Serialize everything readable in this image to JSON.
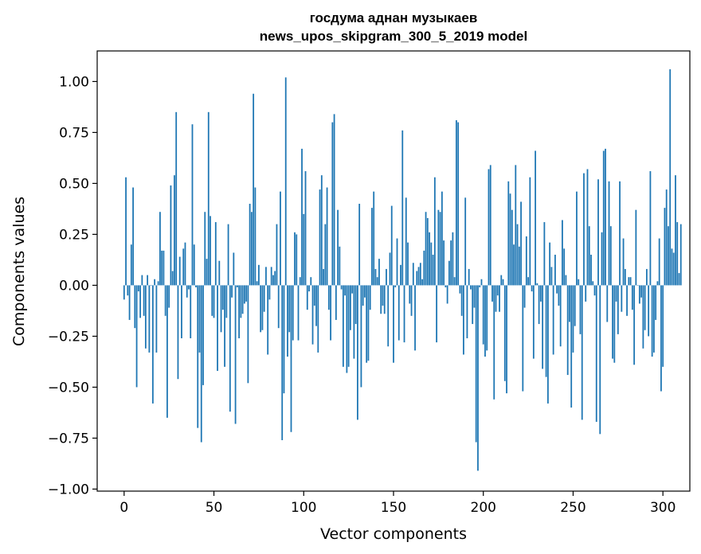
{
  "chart_data": {
    "type": "bar",
    "title_lines": [
      "госдума аднан музыкаев",
      "news_upos_skipgram_300_5_2019 model"
    ],
    "xlabel": "Vector components",
    "ylabel": "Components values",
    "xlim": [
      -15,
      315
    ],
    "ylim": [
      -1.01,
      1.15
    ],
    "x_ticks": [
      0,
      50,
      100,
      150,
      200,
      250,
      300
    ],
    "y_ticks": [
      1.0,
      0.75,
      0.5,
      0.25,
      0.0,
      -0.25,
      -0.5,
      -0.75,
      -1.0
    ],
    "x_tick_labels": [
      "0",
      "50",
      "100",
      "150",
      "200",
      "250",
      "300"
    ],
    "y_tick_labels": [
      "1.00",
      "0.75",
      "0.50",
      "0.25",
      "0.00",
      "−0.25",
      "−0.50",
      "−0.75",
      "−1.00"
    ],
    "bar_color": "#1f77b4",
    "grid": false,
    "values": [
      -0.07,
      0.53,
      -0.05,
      -0.17,
      0.2,
      0.48,
      -0.21,
      -0.5,
      -0.03,
      -0.16,
      0.05,
      -0.15,
      -0.31,
      0.05,
      -0.33,
      0.0,
      -0.58,
      0.03,
      -0.33,
      0.02,
      0.36,
      0.17,
      0.17,
      -0.15,
      -0.65,
      -0.11,
      0.49,
      0.07,
      0.54,
      0.85,
      -0.46,
      0.14,
      -0.26,
      0.18,
      0.21,
      -0.06,
      -0.02,
      -0.26,
      0.79,
      0.2,
      -0.01,
      -0.7,
      -0.33,
      -0.77,
      -0.49,
      0.36,
      0.13,
      0.85,
      0.34,
      -0.15,
      -0.16,
      0.31,
      -0.42,
      0.12,
      -0.23,
      -0.12,
      -0.4,
      -0.16,
      0.3,
      -0.62,
      -0.06,
      0.16,
      -0.68,
      -0.01,
      -0.26,
      -0.16,
      -0.14,
      -0.09,
      -0.08,
      -0.48,
      0.4,
      0.36,
      0.94,
      0.48,
      0.02,
      0.1,
      -0.23,
      -0.22,
      -0.13,
      0.09,
      -0.34,
      -0.07,
      0.09,
      0.05,
      0.07,
      0.3,
      -0.21,
      0.46,
      -0.76,
      -0.53,
      1.02,
      -0.35,
      -0.23,
      -0.72,
      -0.27,
      0.26,
      0.25,
      -0.27,
      0.04,
      0.67,
      0.35,
      0.56,
      -0.12,
      -0.03,
      0.04,
      -0.29,
      -0.1,
      -0.2,
      -0.33,
      0.47,
      0.54,
      0.08,
      0.3,
      0.48,
      -0.12,
      -0.27,
      0.8,
      0.84,
      -0.17,
      0.37,
      0.19,
      -0.02,
      -0.4,
      -0.05,
      -0.43,
      -0.4,
      -0.22,
      -0.04,
      -0.36,
      -0.19,
      -0.66,
      0.4,
      -0.5,
      -0.1,
      -0.06,
      -0.38,
      -0.37,
      -0.12,
      0.38,
      0.46,
      0.08,
      0.04,
      0.13,
      -0.14,
      -0.1,
      -0.14,
      0.08,
      -0.3,
      0.16,
      0.39,
      -0.38,
      -0.01,
      0.23,
      -0.27,
      0.1,
      0.76,
      -0.28,
      0.43,
      0.21,
      -0.09,
      -0.15,
      0.11,
      -0.32,
      0.07,
      0.09,
      0.11,
      0.03,
      0.17,
      0.36,
      0.33,
      0.26,
      0.21,
      0.15,
      0.53,
      -0.28,
      0.37,
      0.36,
      0.46,
      0.22,
      -0.01,
      -0.09,
      0.12,
      0.22,
      0.26,
      0.04,
      0.81,
      0.8,
      -0.04,
      -0.15,
      -0.34,
      0.43,
      -0.26,
      0.08,
      -0.02,
      -0.19,
      -0.11,
      -0.77,
      -0.91,
      -0.01,
      0.03,
      -0.29,
      -0.35,
      -0.32,
      0.57,
      0.59,
      -0.08,
      -0.56,
      -0.13,
      -0.05,
      -0.13,
      0.05,
      0.03,
      -0.47,
      -0.53,
      0.51,
      0.45,
      0.37,
      0.2,
      0.59,
      0.3,
      0.19,
      0.41,
      -0.52,
      -0.11,
      0.24,
      0.04,
      0.53,
      -0.03,
      -0.36,
      0.66,
      0.01,
      -0.19,
      -0.08,
      -0.41,
      0.31,
      -0.45,
      -0.58,
      0.21,
      0.09,
      -0.34,
      0.15,
      -0.04,
      -0.1,
      -0.3,
      0.32,
      0.18,
      0.05,
      -0.44,
      -0.18,
      -0.6,
      -0.33,
      -0.2,
      0.46,
      0.03,
      -0.24,
      -0.66,
      0.55,
      -0.08,
      0.57,
      0.29,
      0.15,
      0.02,
      -0.05,
      -0.67,
      0.52,
      -0.73,
      0.26,
      0.66,
      0.67,
      -0.18,
      0.51,
      0.29,
      -0.36,
      -0.38,
      -0.08,
      -0.24,
      0.51,
      -0.13,
      0.23,
      0.08,
      -0.15,
      0.04,
      0.04,
      -0.12,
      -0.39,
      0.37,
      0.0,
      -0.09,
      -0.06,
      -0.31,
      -0.22,
      0.08,
      -0.25,
      0.56,
      -0.35,
      -0.33,
      -0.17,
      0.02,
      0.23,
      -0.52,
      -0.4,
      0.38,
      0.47,
      0.29,
      1.06,
      0.18,
      0.16,
      0.54,
      0.31,
      0.06,
      0.3
    ]
  }
}
